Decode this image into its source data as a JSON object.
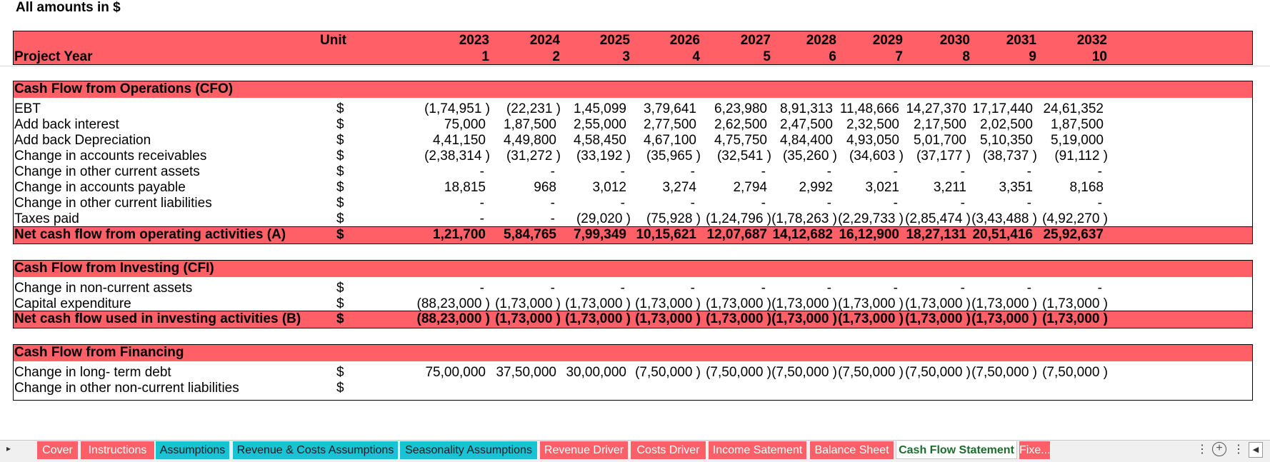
{
  "note": "All amounts in $",
  "header": {
    "unit_label": "Unit",
    "project_year_label": "Project Year",
    "years": [
      "2023",
      "2024",
      "2025",
      "2026",
      "2027",
      "2028",
      "2029",
      "2030",
      "2031",
      "2032"
    ],
    "project_years": [
      "1",
      "2",
      "3",
      "4",
      "5",
      "6",
      "7",
      "8",
      "9",
      "10"
    ]
  },
  "cfo": {
    "title": "Cash Flow from Operations (CFO)",
    "rows": [
      {
        "label": "EBT",
        "unit": "$",
        "values": [
          "(1,74,951 )",
          "(22,231 )",
          "1,45,099",
          "3,79,641",
          "6,23,980",
          "8,91,313",
          "11,48,666",
          "14,27,370",
          "17,17,440",
          "24,61,352"
        ]
      },
      {
        "label": "Add back interest",
        "unit": "$",
        "values": [
          "75,000",
          "1,87,500",
          "2,55,000",
          "2,77,500",
          "2,62,500",
          "2,47,500",
          "2,32,500",
          "2,17,500",
          "2,02,500",
          "1,87,500"
        ]
      },
      {
        "label": "Add back Depreciation",
        "unit": "$",
        "values": [
          "4,41,150",
          "4,49,800",
          "4,58,450",
          "4,67,100",
          "4,75,750",
          "4,84,400",
          "4,93,050",
          "5,01,700",
          "5,10,350",
          "5,19,000"
        ]
      },
      {
        "label": "Change in accounts receivables",
        "unit": "$",
        "values": [
          "(2,38,314 )",
          "(31,272 )",
          "(33,192 )",
          "(35,965 )",
          "(32,541 )",
          "(35,260 )",
          "(34,603 )",
          "(37,177 )",
          "(38,737 )",
          "(91,112 )"
        ]
      },
      {
        "label": "Change in other current assets",
        "unit": "$",
        "values": [
          "-",
          "-",
          "-",
          "-",
          "-",
          "-",
          "-",
          "-",
          "-",
          "-"
        ]
      },
      {
        "label": "Change in accounts payable",
        "unit": "$",
        "values": [
          "18,815",
          "968",
          "3,012",
          "3,274",
          "2,794",
          "2,992",
          "3,021",
          "3,211",
          "3,351",
          "8,168"
        ]
      },
      {
        "label": "Change in other current liabilities",
        "unit": "$",
        "values": [
          "-",
          "-",
          "-",
          "-",
          "-",
          "-",
          "-",
          "-",
          "-",
          "-"
        ]
      },
      {
        "label": "Taxes paid",
        "unit": "$",
        "values": [
          "-",
          "-",
          "(29,020 )",
          "(75,928 )",
          "(1,24,796 )",
          "(1,78,263 )",
          "(2,29,733 )",
          "(2,85,474 )",
          "(3,43,488 )",
          "(4,92,270 )"
        ]
      }
    ],
    "total": {
      "label": "Net cash flow from operating activities (A)",
      "unit": "$",
      "values": [
        "1,21,700",
        "5,84,765",
        "7,99,349",
        "10,15,621",
        "12,07,687",
        "14,12,682",
        "16,12,900",
        "18,27,131",
        "20,51,416",
        "25,92,637"
      ]
    }
  },
  "cfi": {
    "title": "Cash Flow from Investing (CFI)",
    "rows": [
      {
        "label": "Change in non-current assets",
        "unit": "$",
        "values": [
          "-",
          "-",
          "-",
          "-",
          "-",
          "-",
          "-",
          "-",
          "-",
          "-"
        ]
      },
      {
        "label": "Capital expenditure",
        "unit": "$",
        "values": [
          "(88,23,000 )",
          "(1,73,000 )",
          "(1,73,000 )",
          "(1,73,000 )",
          "(1,73,000 )",
          "(1,73,000 )",
          "(1,73,000 )",
          "(1,73,000 )",
          "(1,73,000 )",
          "(1,73,000 )"
        ]
      }
    ],
    "total": {
      "label": "Net cash flow used in investing activities (B)",
      "unit": "$",
      "values": [
        "(88,23,000 )",
        "(1,73,000 )",
        "(1,73,000 )",
        "(1,73,000 )",
        "(1,73,000 )",
        "(1,73,000 )",
        "(1,73,000 )",
        "(1,73,000 )",
        "(1,73,000 )",
        "(1,73,000 )"
      ]
    }
  },
  "cff": {
    "title": "Cash Flow from Financing",
    "rows": [
      {
        "label": "Change in long- term debt",
        "unit": "$",
        "values": [
          "75,00,000",
          "37,50,000",
          "30,00,000",
          "(7,50,000 )",
          "(7,50,000 )",
          "(7,50,000 )",
          "(7,50,000 )",
          "(7,50,000 )",
          "(7,50,000 )",
          "(7,50,000 )"
        ]
      },
      {
        "label": "Change in other non-current liabilities",
        "unit": "$",
        "values": []
      }
    ]
  },
  "tabs": [
    {
      "label": "Cover",
      "color": "#ff5f66"
    },
    {
      "label": "Instructions",
      "color": "#ff5f66"
    },
    {
      "label": "Assumptions",
      "color": "#19c3d6"
    },
    {
      "label": "Revenue & Costs Assumptions",
      "color": "#19c3d6"
    },
    {
      "label": "Seasonality Assumptions",
      "color": "#19c3d6"
    },
    {
      "label": "Revenue Driver",
      "color": "#ff5f66"
    },
    {
      "label": "Costs Driver",
      "color": "#ff5f66"
    },
    {
      "label": "Income Satement",
      "color": "#ff5f66"
    },
    {
      "label": "Balance Sheet",
      "color": "#ff5f66"
    },
    {
      "label": "Cash Flow Statement",
      "color": "#ffffff"
    },
    {
      "label": "Fixe...",
      "color": "#ff5f66"
    }
  ],
  "colors": {
    "band": "#ff5f66",
    "tab_teal": "#19c3d6",
    "active_tab_text": "#1d6b2d"
  }
}
